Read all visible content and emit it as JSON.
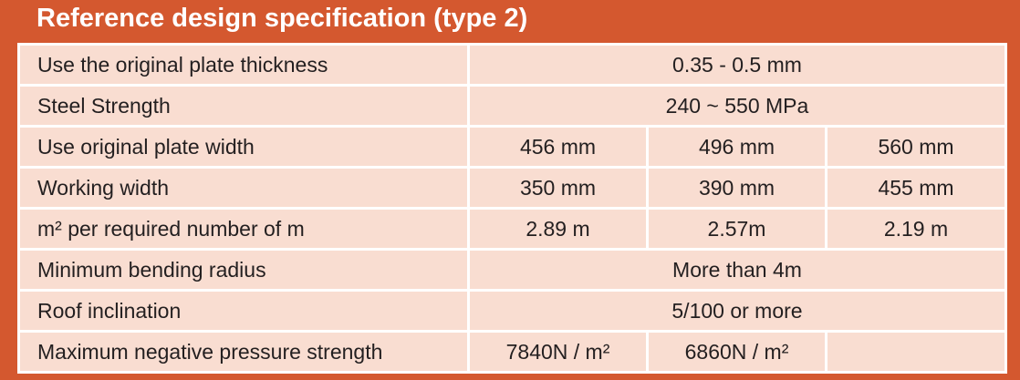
{
  "header": {
    "title": "Reference design specification (type 2)"
  },
  "table": {
    "rows": [
      [
        "Use the original plate thickness",
        "0.35 - 0.5 mm"
      ],
      [
        "Steel Strength",
        "240 ~ 550 MPa"
      ],
      [
        "Use original plate width",
        "456 mm",
        "496 mm",
        "560 mm"
      ],
      [
        "Working width",
        "350 mm",
        "390 mm",
        "455 mm"
      ],
      [
        "m² per required number of m",
        "2.89 m",
        "2.57m",
        "2.19 m"
      ],
      [
        "Minimum bending radius",
        "More than 4m"
      ],
      [
        "Roof inclination",
        "5/100 or more"
      ],
      [
        "Maximum negative pressure strength",
        "7840N / m²",
        "6860N / m²"
      ]
    ]
  }
}
